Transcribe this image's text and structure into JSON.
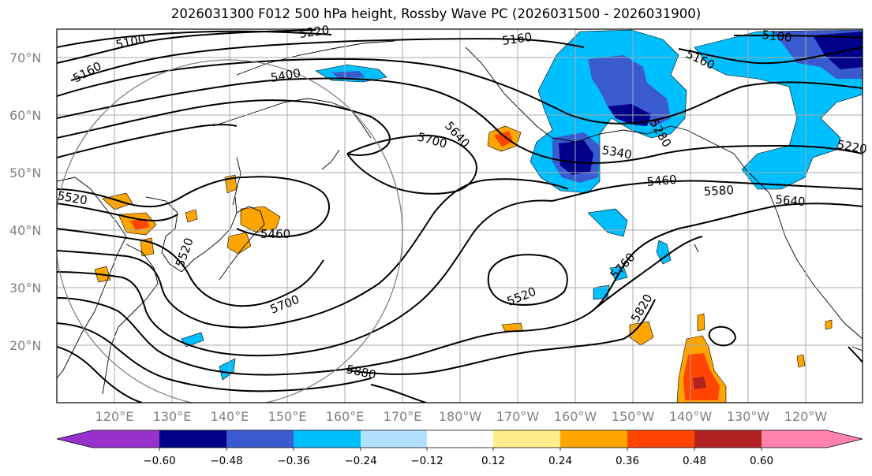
{
  "title": "2026031300 F012 500 hPa height, Rossby Wave PC (2026031500 - 2026031900)",
  "lat_labels": [
    "70°N",
    "60°N",
    "50°N",
    "40°N",
    "30°N",
    "20°N"
  ],
  "lon_labels": [
    "120°E",
    "130°E",
    "140°E",
    "150°E",
    "160°E",
    "170°E",
    "180°W",
    "170°W",
    "160°W",
    "150°W",
    "140°W",
    "130°W",
    "120°W"
  ],
  "colorbar": {
    "colors": [
      "#9932cc",
      "#00008b",
      "#3a5bcf",
      "#00bfff",
      "#b0e2ff",
      "#ffffff",
      "#ffec8b",
      "#ffa500",
      "#ff4500",
      "#b22222",
      "#ff82ab"
    ],
    "ticks": [
      "−0.60",
      "−0.48",
      "−0.36",
      "−0.24",
      "−0.12",
      "0.12",
      "0.24",
      "0.36",
      "0.48",
      "0.60"
    ]
  },
  "contour_labels": [
    "5100",
    "5220",
    "5160",
    "5160",
    "5100",
    "5160",
    "5400",
    "5640",
    "5700",
    "5280",
    "5340",
    "5520",
    "5460",
    "5580",
    "5640",
    "5220",
    "5460",
    "5520",
    "5700",
    "5520",
    "5760",
    "5820",
    "5880"
  ]
}
